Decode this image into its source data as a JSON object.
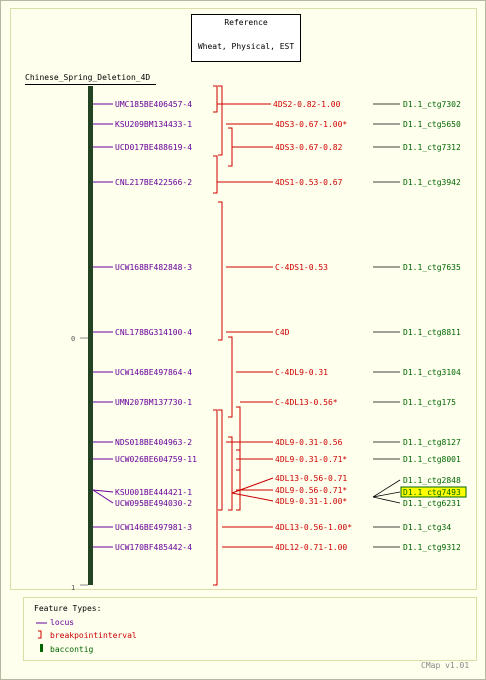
{
  "reference": {
    "title": "Reference",
    "subtitle": "Wheat, Physical, EST"
  },
  "map_title": "Chinese_Spring_Deletion_4D",
  "axis": {
    "top_tick": "0",
    "bottom_tick": "1"
  },
  "legend": {
    "title": "Feature Types:",
    "items": [
      {
        "label": "locus",
        "color": "#660099"
      },
      {
        "label": "breakpointinterval",
        "color": "#cc0000"
      },
      {
        "label": "baccontig",
        "color": "#006600"
      }
    ]
  },
  "version": "CMap v1.01",
  "colors": {
    "locus": "#660099",
    "breakpoint": "#cc0000",
    "contig": "#006600",
    "bar": "#224422",
    "highlight": "#ffff00"
  },
  "loci": [
    {
      "label": "UMC185BE406457-4"
    },
    {
      "label": "KSU209BM134433-1"
    },
    {
      "label": "UCD017BE488619-4"
    },
    {
      "label": "CNL217BE422566-2"
    },
    {
      "label": "UCW168BF482848-3"
    },
    {
      "label": "CNL178BG314100-4"
    },
    {
      "label": "UCW146BE497864-4"
    },
    {
      "label": "UMN207BM137730-1"
    },
    {
      "label": "NDS018BE404963-2"
    },
    {
      "label": "UCW026BE604759-11"
    },
    {
      "label": "KSU001BE444421-1"
    },
    {
      "label": "UCW095BE494030-2"
    },
    {
      "label": "UCW146BE497981-3"
    },
    {
      "label": "UCW170BF485442-4"
    }
  ],
  "breakpoints": [
    {
      "label": "4DS2-0.82-1.00"
    },
    {
      "label": "4DS3-0.67-1.00*"
    },
    {
      "label": "4DS3-0.67-0.82"
    },
    {
      "label": "4DS1-0.53-0.67"
    },
    {
      "label": "C-4DS1-0.53"
    },
    {
      "label": "C4D"
    },
    {
      "label": "C-4DL9-0.31"
    },
    {
      "label": "C-4DL13-0.56*"
    },
    {
      "label": "4DL9-0.31-0.56"
    },
    {
      "label": "4DL9-0.31-0.71*"
    },
    {
      "label": "4DL13-0.56-0.71"
    },
    {
      "label": "4DL9-0.56-0.71*"
    },
    {
      "label": "4DL9-0.31-1.00*"
    },
    {
      "label": "4DL13-0.56-1.00*"
    },
    {
      "label": "4DL12-0.71-1.00"
    }
  ],
  "contigs": [
    {
      "label": "D1.1_ctg7302"
    },
    {
      "label": "D1.1_ctg5650"
    },
    {
      "label": "D1.1_ctg7312"
    },
    {
      "label": "D1.1_ctg3942"
    },
    {
      "label": "D1.1_ctg7635"
    },
    {
      "label": "D1.1_ctg8811"
    },
    {
      "label": "D1.1_ctg3104"
    },
    {
      "label": "D1.1_ctg175"
    },
    {
      "label": "D1.1_ctg8127"
    },
    {
      "label": "D1.1_ctg8001"
    },
    {
      "label": "D1.1_ctg2848"
    },
    {
      "label": "D1.1_ctg7493",
      "highlighted": true
    },
    {
      "label": "D1.1_ctg6231"
    },
    {
      "label": "D1.1_ctg34"
    },
    {
      "label": "D1.1_ctg9312"
    }
  ]
}
